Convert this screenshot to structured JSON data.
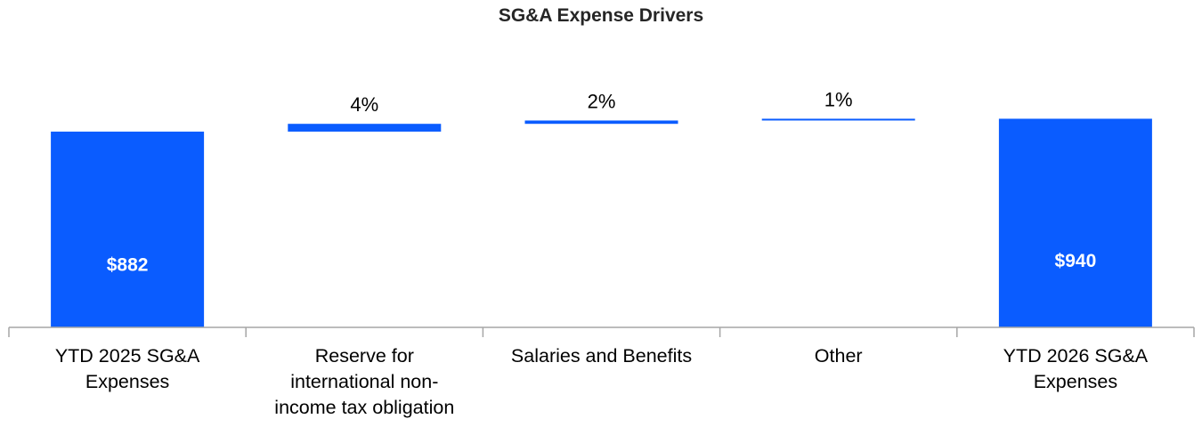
{
  "chart_data": {
    "type": "bar",
    "subtype": "waterfall",
    "title": "SG&A Expense Drivers",
    "xlabel": "",
    "ylabel": "",
    "grid": false,
    "legend": "none",
    "bar_color": "#0a5cff",
    "categories": [
      [
        "YTD 2025 SG&A",
        "Expenses"
      ],
      [
        "Reserve for",
        "international non-",
        "income tax obligation"
      ],
      [
        "Salaries and Benefits"
      ],
      [
        "Other"
      ],
      [
        "YTD 2026 SG&A",
        "Expenses"
      ]
    ],
    "bars": [
      {
        "kind": "total",
        "start": 0,
        "end": 882,
        "label": "$882"
      },
      {
        "kind": "increase",
        "start": 882,
        "end": 917,
        "label": "4%"
      },
      {
        "kind": "increase",
        "start": 917,
        "end": 932,
        "label": "2%"
      },
      {
        "kind": "increase",
        "start": 932,
        "end": 940,
        "label": "1%"
      },
      {
        "kind": "total",
        "start": 0,
        "end": 940,
        "label": "$940"
      }
    ]
  }
}
